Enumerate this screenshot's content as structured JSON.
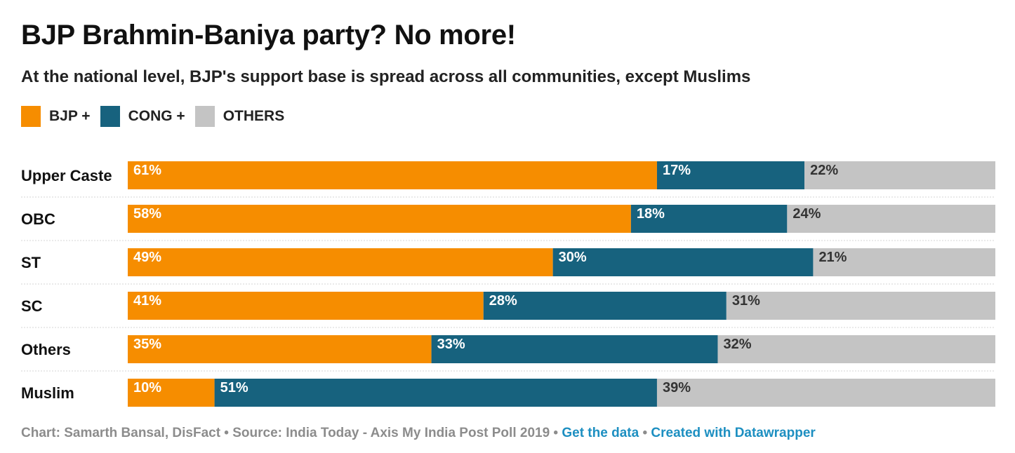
{
  "header": {
    "title": "BJP Brahmin-Baniya party? No more!",
    "subtitle": "At the national level, BJP's support base is spread across all communities, except Muslims"
  },
  "legend": [
    {
      "label": "BJP +",
      "color": "#f68d00"
    },
    {
      "label": "CONG +",
      "color": "#17627e"
    },
    {
      "label": "OTHERS",
      "color": "#c4c4c4"
    }
  ],
  "chart_data": {
    "type": "bar",
    "stacked": true,
    "orientation": "horizontal",
    "value_suffix": "%",
    "categories": [
      "Upper Caste",
      "OBC",
      "ST",
      "SC",
      "Others",
      "Muslim"
    ],
    "series": [
      {
        "name": "BJP +",
        "color": "#f68d00",
        "values": [
          61,
          58,
          49,
          41,
          35,
          10
        ]
      },
      {
        "name": "CONG +",
        "color": "#17627e",
        "values": [
          17,
          18,
          30,
          28,
          33,
          51
        ]
      },
      {
        "name": "OTHERS",
        "color": "#c4c4c4",
        "values": [
          22,
          24,
          21,
          31,
          32,
          39
        ]
      }
    ],
    "xlim": [
      0,
      100
    ]
  },
  "footer": {
    "credit": "Chart: Samarth Bansal, DisFact",
    "separator": " • ",
    "source": "Source: India Today - Axis My India Post Poll 2019",
    "get_data_link": "Get the data",
    "datawrapper_link": "Created with Datawrapper"
  }
}
